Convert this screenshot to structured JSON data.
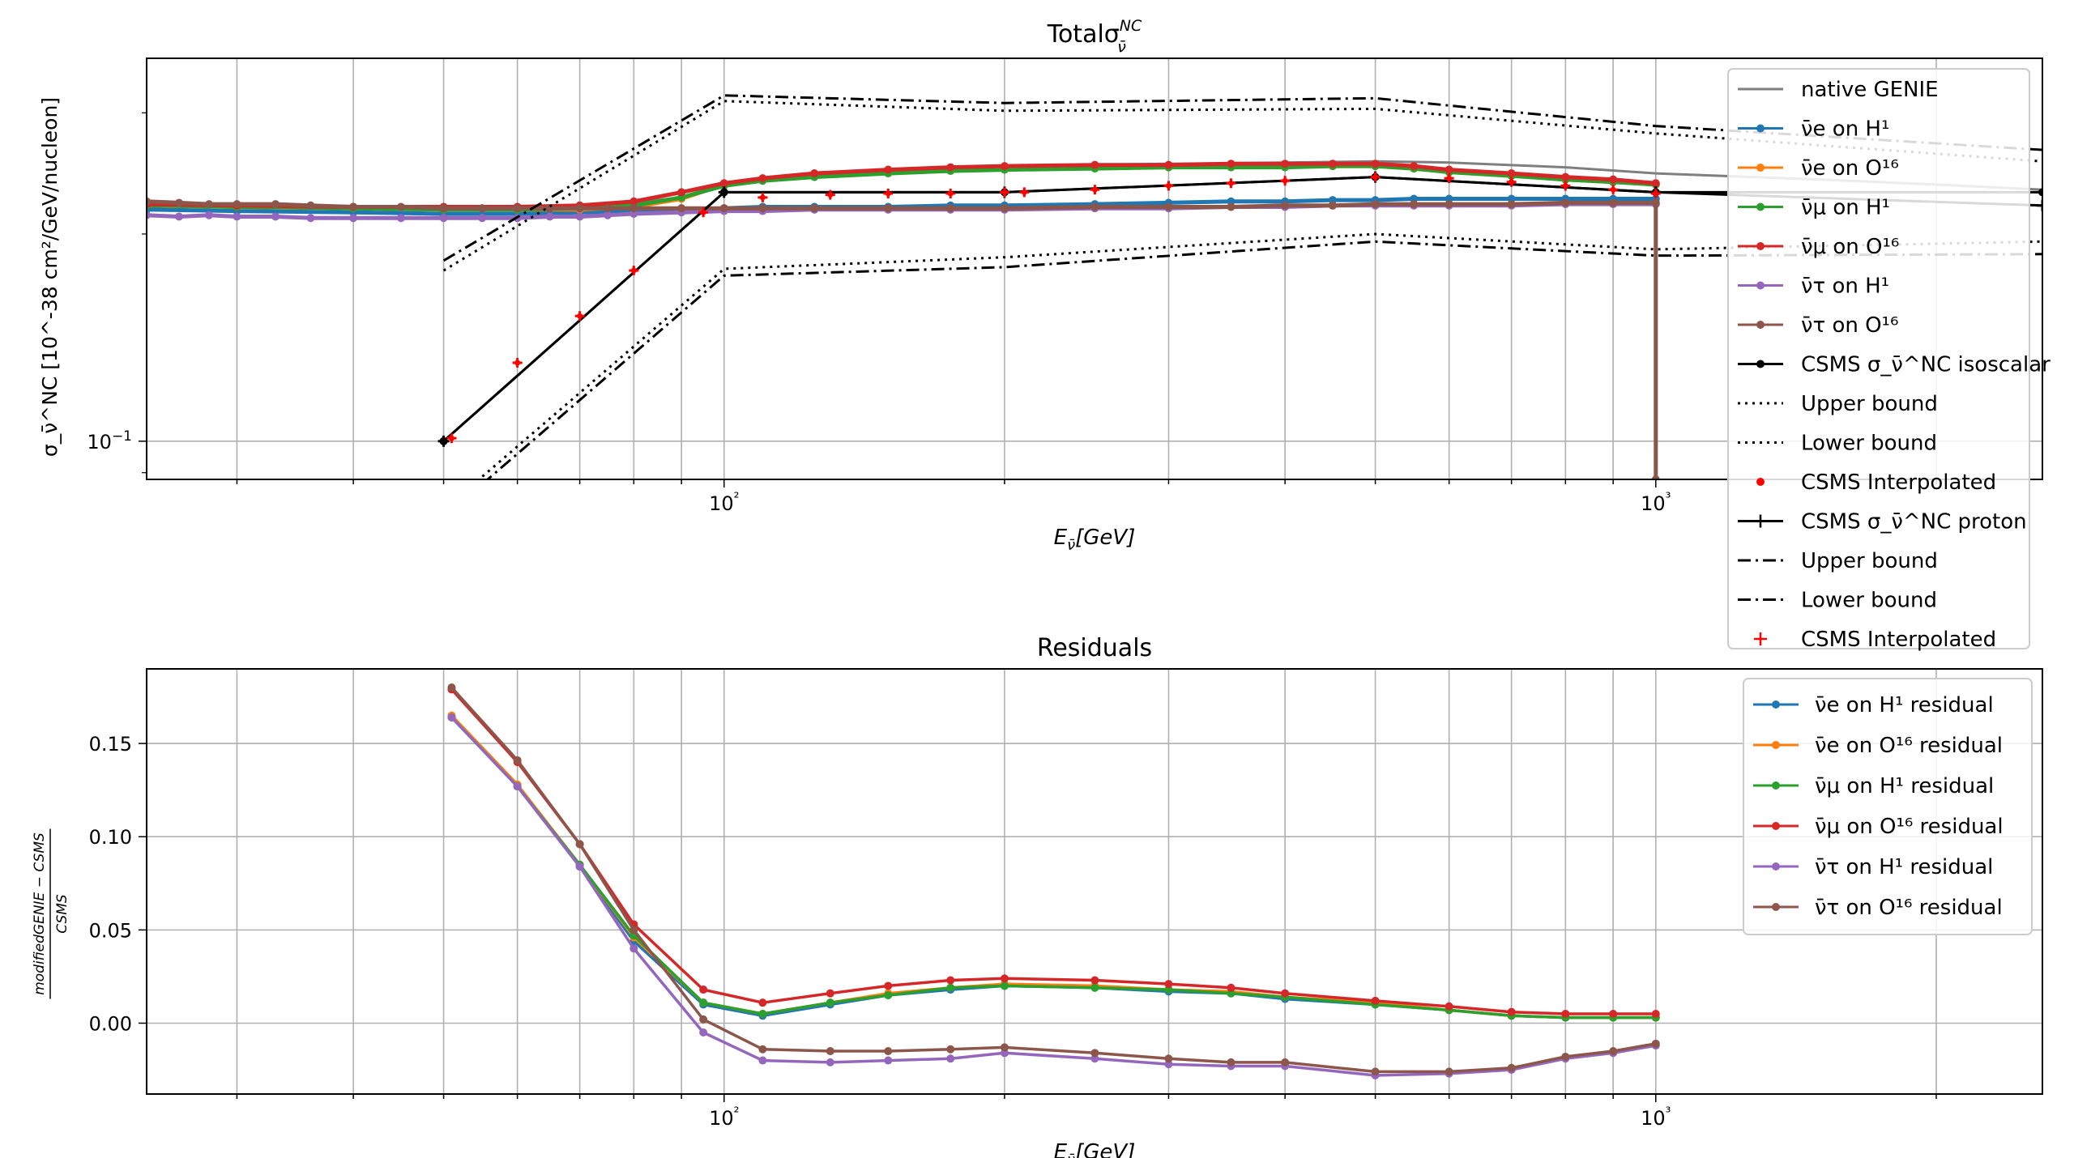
{
  "chart_data": [
    {
      "type": "line",
      "title": "Totalσ_ν̄^NC",
      "xlabel": "E_ν̄[GeV]",
      "ylabel": "σ_ν̄^NC [10^-38 cm²/GeV/nucleon]",
      "x_scale": "log",
      "y_scale": "log",
      "xlim": [
        24,
        2600
      ],
      "ylim": [
        0.088,
        0.36
      ],
      "x_ticklabels": [
        "10²",
        "10³"
      ],
      "y_ticklabels": [
        "10⁻¹"
      ],
      "grid": true,
      "legend_position": "top-right",
      "legend": [
        {
          "label": "native GENIE",
          "color": "#7f7f7f",
          "style": "solid"
        },
        {
          "label": "ν̄e on H¹",
          "color": "#1f77b4",
          "style": "solid-dot"
        },
        {
          "label": "ν̄e on O¹⁶",
          "color": "#ff7f0e",
          "style": "solid-dot"
        },
        {
          "label": "ν̄μ on H¹",
          "color": "#2ca02c",
          "style": "solid-dot"
        },
        {
          "label": "ν̄μ on O¹⁶",
          "color": "#d62728",
          "style": "solid-dot"
        },
        {
          "label": "ν̄τ on H¹",
          "color": "#9467bd",
          "style": "solid-dot"
        },
        {
          "label": "ν̄τ on O¹⁶",
          "color": "#8c564b",
          "style": "solid-dot"
        },
        {
          "label": "CSMS σ_ν̄^NC isoscalar",
          "color": "#000000",
          "style": "solid-dot"
        },
        {
          "label": "Upper bound",
          "color": "#000000",
          "style": "dotted"
        },
        {
          "label": "Lower bound",
          "color": "#000000",
          "style": "dotted"
        },
        {
          "label": "CSMS Interpolated",
          "color": "#ff0000",
          "style": "dot-marker"
        },
        {
          "label": "CSMS σ_ν̄^NC proton",
          "color": "#000000",
          "style": "solid-plus"
        },
        {
          "label": "Upper bound",
          "color": "#000000",
          "style": "dashdot"
        },
        {
          "label": "Lower bound",
          "color": "#000000",
          "style": "dashdot"
        },
        {
          "label": "CSMS Interpolated",
          "color": "#ff0000",
          "style": "plus-marker"
        }
      ],
      "series": [
        {
          "name": "native GENIE",
          "color": "#7f7f7f",
          "x": [
            24,
            30,
            40,
            50,
            60,
            70,
            80,
            90,
            100,
            150,
            200,
            300,
            400,
            500,
            600,
            800,
            1000,
            1500,
            2000,
            2600
          ],
          "y": [
            0.22,
            0.219,
            0.218,
            0.218,
            0.219,
            0.22,
            0.222,
            0.226,
            0.236,
            0.247,
            0.251,
            0.253,
            0.254,
            0.255,
            0.254,
            0.25,
            0.245,
            0.24,
            0.236,
            0.232
          ]
        },
        {
          "name": "ν̄e on H¹",
          "color": "#1f77b4",
          "x": [
            24,
            30,
            40,
            50,
            60,
            70,
            80,
            90,
            100,
            110,
            125,
            150,
            175,
            200,
            250,
            300,
            350,
            400,
            450,
            500,
            550,
            600,
            700,
            800,
            900,
            1000
          ],
          "y": [
            0.217,
            0.216,
            0.215,
            0.214,
            0.214,
            0.215,
            0.216,
            0.217,
            0.218,
            0.219,
            0.219,
            0.219,
            0.22,
            0.22,
            0.221,
            0.222,
            0.223,
            0.223,
            0.224,
            0.224,
            0.225,
            0.225,
            0.225,
            0.225,
            0.225,
            0.225
          ]
        },
        {
          "name": "ν̄e on O¹⁶",
          "color": "#ff7f0e",
          "x": [
            24,
            30,
            40,
            50,
            60,
            70,
            80,
            90,
            100,
            110,
            125,
            150,
            175,
            200,
            250,
            300,
            350,
            400,
            450,
            500,
            550,
            600,
            700,
            800,
            900,
            1000
          ],
          "y": [
            0.22,
            0.219,
            0.218,
            0.217,
            0.217,
            0.217,
            0.219,
            0.225,
            0.236,
            0.24,
            0.243,
            0.246,
            0.248,
            0.249,
            0.25,
            0.25,
            0.251,
            0.251,
            0.251,
            0.251,
            0.249,
            0.246,
            0.243,
            0.24,
            0.238,
            0.236
          ]
        },
        {
          "name": "ν̄μ on H¹",
          "color": "#2ca02c",
          "x": [
            24,
            30,
            40,
            50,
            60,
            70,
            80,
            90,
            100,
            110,
            125,
            150,
            175,
            200,
            250,
            300,
            350,
            400,
            450,
            500,
            550,
            600,
            700,
            800,
            900,
            1000
          ],
          "y": [
            0.22,
            0.219,
            0.218,
            0.217,
            0.217,
            0.218,
            0.22,
            0.226,
            0.235,
            0.239,
            0.242,
            0.245,
            0.247,
            0.248,
            0.249,
            0.25,
            0.25,
            0.25,
            0.251,
            0.251,
            0.249,
            0.246,
            0.243,
            0.24,
            0.238,
            0.236
          ]
        },
        {
          "name": "ν̄μ on O¹⁶",
          "color": "#d62728",
          "x": [
            24,
            30,
            40,
            50,
            60,
            70,
            80,
            90,
            100,
            110,
            125,
            150,
            175,
            200,
            250,
            300,
            350,
            400,
            450,
            500,
            550,
            600,
            700,
            800,
            900,
            1000
          ],
          "y": [
            0.221,
            0.22,
            0.219,
            0.219,
            0.219,
            0.22,
            0.223,
            0.23,
            0.237,
            0.241,
            0.245,
            0.248,
            0.25,
            0.251,
            0.252,
            0.252,
            0.253,
            0.253,
            0.253,
            0.253,
            0.251,
            0.248,
            0.245,
            0.242,
            0.24,
            0.237
          ]
        },
        {
          "name": "ν̄τ on H¹",
          "color": "#9467bd",
          "x": [
            24,
            26,
            28,
            30,
            33,
            36,
            40,
            45,
            50,
            55,
            60,
            65,
            70,
            75,
            80,
            90,
            100,
            110,
            125,
            150,
            175,
            200,
            250,
            300,
            350,
            400,
            450,
            500,
            550,
            600,
            700,
            800,
            900,
            1000
          ],
          "y": [
            0.213,
            0.212,
            0.213,
            0.212,
            0.212,
            0.211,
            0.211,
            0.211,
            0.211,
            0.211,
            0.211,
            0.212,
            0.212,
            0.213,
            0.214,
            0.215,
            0.216,
            0.216,
            0.217,
            0.217,
            0.217,
            0.217,
            0.218,
            0.218,
            0.219,
            0.219,
            0.22,
            0.22,
            0.22,
            0.22,
            0.22,
            0.221,
            0.221,
            0.221
          ]
        },
        {
          "name": "ν̄τ on O¹⁶",
          "color": "#8c564b",
          "x": [
            24,
            26,
            28,
            30,
            33,
            36,
            40,
            45,
            50,
            55,
            60,
            65,
            70,
            75,
            80,
            90,
            100,
            110,
            125,
            150,
            175,
            200,
            250,
            300,
            350,
            400,
            450,
            500,
            550,
            600,
            700,
            800,
            900,
            1000,
            1000
          ],
          "y": [
            0.223,
            0.222,
            0.221,
            0.221,
            0.221,
            0.22,
            0.219,
            0.219,
            0.218,
            0.218,
            0.218,
            0.218,
            0.218,
            0.218,
            0.218,
            0.218,
            0.218,
            0.218,
            0.218,
            0.218,
            0.218,
            0.218,
            0.219,
            0.219,
            0.219,
            0.22,
            0.22,
            0.221,
            0.221,
            0.221,
            0.221,
            0.222,
            0.222,
            0.222,
            0.088
          ]
        },
        {
          "name": "CSMS σ_ν̄^NC isoscalar",
          "color": "#000000",
          "x": [
            50,
            100,
            200,
            500,
            1000,
            2600
          ],
          "y": [
            0.1,
            0.23,
            0.23,
            0.242,
            0.23,
            0.23
          ]
        },
        {
          "name": "CSMS σ_ν̄^NC proton",
          "color": "#000000",
          "x": [
            50,
            100,
            200,
            500,
            1000,
            2600
          ],
          "y": [
            0.1,
            0.23,
            0.23,
            0.242,
            0.23,
            0.22
          ]
        },
        {
          "name": "Upper bound",
          "color": "#000000",
          "x": [
            50,
            100,
            200,
            500,
            1000,
            2600
          ],
          "y": [
            0.177,
            0.312,
            0.302,
            0.304,
            0.28,
            0.255
          ]
        },
        {
          "name": "Lower bound",
          "color": "#000000",
          "x": [
            50,
            100,
            200,
            500,
            1000,
            2600
          ],
          "y": [
            0.0795,
            0.178,
            0.185,
            0.2,
            0.19,
            0.195
          ]
        },
        {
          "name": "Upper bound",
          "color": "#000000",
          "x": [
            50,
            100,
            200,
            500,
            1000,
            2600
          ],
          "y": [
            0.183,
            0.318,
            0.31,
            0.315,
            0.287,
            0.265
          ]
        },
        {
          "name": "Lower bound",
          "color": "#000000",
          "x": [
            50,
            100,
            200,
            500,
            1000,
            2600
          ],
          "y": [
            0.0775,
            0.174,
            0.179,
            0.195,
            0.186,
            0.187
          ]
        },
        {
          "name": "CSMS Interpolated",
          "color": "#ff0000",
          "x": [
            51,
            60,
            70,
            80,
            95,
            110,
            130,
            150,
            175,
            200,
            210,
            250,
            300,
            350,
            400,
            500,
            600,
            700,
            800,
            900,
            1000
          ],
          "y": [
            0.101,
            0.13,
            0.152,
            0.177,
            0.215,
            0.226,
            0.228,
            0.229,
            0.229,
            0.23,
            0.23,
            0.232,
            0.235,
            0.237,
            0.239,
            0.242,
            0.241,
            0.238,
            0.235,
            0.232,
            0.229
          ]
        }
      ]
    },
    {
      "type": "line",
      "title": "Residuals",
      "xlabel": "E_ν̄[GeV]",
      "ylabel": "(modifiedGENIE − CSMS) / CSMS",
      "x_scale": "log",
      "xlim": [
        24,
        2600
      ],
      "ylim": [
        -0.038,
        0.19
      ],
      "yticks": [
        0.0,
        0.05,
        0.1,
        0.15
      ],
      "y_ticklabels": [
        "0.00",
        "0.05",
        "0.10",
        "0.15"
      ],
      "x_ticklabels": [
        "10²",
        "10³"
      ],
      "grid": true,
      "legend_position": "top-right",
      "x": [
        51,
        60,
        70,
        80,
        95,
        110,
        130,
        150,
        175,
        200,
        250,
        300,
        350,
        400,
        500,
        600,
        700,
        800,
        900,
        1000
      ],
      "series": [
        {
          "name": "ν̄e on H¹ residual",
          "color": "#1f77b4",
          "values": [
            0.164,
            0.127,
            0.084,
            0.044,
            0.01,
            0.004,
            0.01,
            0.015,
            0.018,
            0.02,
            0.019,
            0.017,
            0.016,
            0.013,
            0.01,
            0.007,
            0.004,
            0.003,
            0.003,
            0.003
          ]
        },
        {
          "name": "ν̄e on O¹⁶ residual",
          "color": "#ff7f0e",
          "values": [
            0.165,
            0.128,
            0.085,
            0.046,
            0.011,
            0.005,
            0.011,
            0.016,
            0.019,
            0.021,
            0.02,
            0.018,
            0.017,
            0.014,
            0.011,
            0.007,
            0.004,
            0.003,
            0.003,
            0.003
          ]
        },
        {
          "name": "ν̄μ on H¹ residual",
          "color": "#2ca02c",
          "values": [
            0.164,
            0.127,
            0.085,
            0.047,
            0.011,
            0.005,
            0.011,
            0.015,
            0.019,
            0.02,
            0.019,
            0.018,
            0.016,
            0.014,
            0.01,
            0.007,
            0.004,
            0.003,
            0.003,
            0.003
          ]
        },
        {
          "name": "ν̄μ on O¹⁶ residual",
          "color": "#d62728",
          "values": [
            0.179,
            0.14,
            0.096,
            0.053,
            0.018,
            0.011,
            0.016,
            0.02,
            0.023,
            0.024,
            0.023,
            0.021,
            0.019,
            0.016,
            0.012,
            0.009,
            0.006,
            0.005,
            0.005,
            0.005
          ]
        },
        {
          "name": "ν̄τ on H¹ residual",
          "color": "#9467bd",
          "values": [
            0.164,
            0.127,
            0.084,
            0.04,
            -0.005,
            -0.02,
            -0.021,
            -0.02,
            -0.019,
            -0.016,
            -0.019,
            -0.022,
            -0.023,
            -0.023,
            -0.028,
            -0.027,
            -0.025,
            -0.019,
            -0.016,
            -0.012
          ]
        },
        {
          "name": "ν̄τ on O¹⁶ residual",
          "color": "#8c564b",
          "values": [
            0.18,
            0.141,
            0.096,
            0.05,
            0.002,
            -0.014,
            -0.015,
            -0.015,
            -0.014,
            -0.013,
            -0.016,
            -0.019,
            -0.021,
            -0.021,
            -0.026,
            -0.026,
            -0.024,
            -0.018,
            -0.015,
            -0.011
          ]
        }
      ]
    }
  ]
}
